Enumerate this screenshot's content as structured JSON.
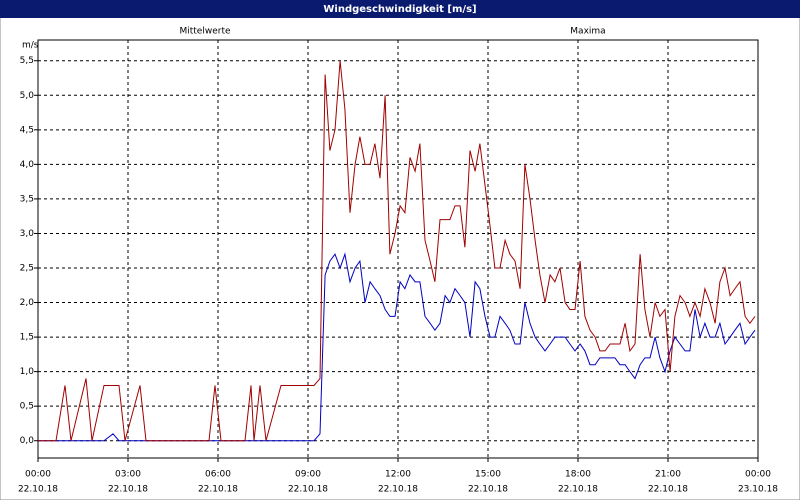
{
  "chart_data": {
    "type": "line",
    "title": "Windgeschwindigkeit [m/s]",
    "y_unit": "m/s",
    "grid": true,
    "xlim": [
      0,
      24
    ],
    "ylim": [
      -0.25,
      5.8
    ],
    "yticks": [
      {
        "value": 0,
        "label": "0,0"
      },
      {
        "value": 0.5,
        "label": "0,5"
      },
      {
        "value": 1,
        "label": "1,0"
      },
      {
        "value": 1.5,
        "label": "1,5"
      },
      {
        "value": 2,
        "label": "2,0"
      },
      {
        "value": 2.5,
        "label": "2,5"
      },
      {
        "value": 3,
        "label": "3,0"
      },
      {
        "value": 3.5,
        "label": "3,5"
      },
      {
        "value": 4,
        "label": "4,0"
      },
      {
        "value": 4.5,
        "label": "4,5"
      },
      {
        "value": 5,
        "label": "5,0"
      },
      {
        "value": 5.5,
        "label": "5,5"
      }
    ],
    "xticks": [
      {
        "value": 0,
        "label": [
          "00:00",
          "22.10.18"
        ]
      },
      {
        "value": 3,
        "label": [
          "03:00",
          "22.10.18"
        ]
      },
      {
        "value": 6,
        "label": [
          "06:00",
          "22.10.18"
        ]
      },
      {
        "value": 9,
        "label": [
          "09:00",
          "22.10.18"
        ]
      },
      {
        "value": 12,
        "label": [
          "12:00",
          "22.10.18"
        ]
      },
      {
        "value": 15,
        "label": [
          "15:00",
          "22.10.18"
        ]
      },
      {
        "value": 18,
        "label": [
          "18:00",
          "22.10.18"
        ]
      },
      {
        "value": 21,
        "label": [
          "21:00",
          "22.10.18"
        ]
      },
      {
        "value": 24,
        "label": [
          "00:00",
          "23.10.18"
        ]
      }
    ],
    "x": [
      0,
      0.6,
      0.9,
      1.1,
      1.6,
      1.8,
      2.2,
      2.5,
      2.7,
      2.9,
      3.4,
      3.6,
      5.7,
      5.9,
      6.1,
      6.9,
      7.1,
      7.2,
      7.4,
      7.6,
      8.1,
      9.2,
      9.4,
      9.57,
      9.73,
      9.9,
      10.07,
      10.23,
      10.4,
      10.57,
      10.73,
      10.9,
      11.07,
      11.23,
      11.4,
      11.57,
      11.73,
      11.9,
      12.07,
      12.23,
      12.4,
      12.57,
      12.73,
      12.9,
      13.07,
      13.23,
      13.4,
      13.57,
      13.73,
      13.9,
      14.07,
      14.23,
      14.4,
      14.57,
      14.73,
      14.9,
      15.07,
      15.23,
      15.4,
      15.57,
      15.73,
      15.9,
      16.07,
      16.23,
      16.4,
      16.57,
      16.73,
      16.9,
      17.07,
      17.23,
      17.4,
      17.57,
      17.73,
      17.9,
      18.07,
      18.23,
      18.4,
      18.57,
      18.73,
      18.9,
      19.07,
      19.23,
      19.4,
      19.57,
      19.73,
      19.9,
      20.07,
      20.23,
      20.4,
      20.57,
      20.73,
      20.9,
      21.07,
      21.23,
      21.4,
      21.57,
      21.73,
      21.9,
      22.07,
      22.23,
      22.4,
      22.57,
      22.73,
      22.9,
      23.07,
      23.23,
      23.4,
      23.57,
      23.73,
      23.9
    ],
    "series": [
      {
        "name": "Mittelwerte",
        "color": "#0000c0",
        "values": [
          0,
          0,
          0,
          0,
          0,
          0,
          0,
          0.1,
          0,
          0,
          0,
          0,
          0,
          0,
          0,
          0,
          0,
          0,
          0,
          0,
          0,
          0,
          0.1,
          2.4,
          2.6,
          2.7,
          2.5,
          2.7,
          2.3,
          2.5,
          2.6,
          2.0,
          2.3,
          2.2,
          2.1,
          1.9,
          1.8,
          1.8,
          2.3,
          2.2,
          2.4,
          2.3,
          2.3,
          1.8,
          1.7,
          1.6,
          1.7,
          2.1,
          2.0,
          2.2,
          2.1,
          2.0,
          1.5,
          2.3,
          2.2,
          1.8,
          1.5,
          1.5,
          1.8,
          1.7,
          1.6,
          1.4,
          1.4,
          2.0,
          1.7,
          1.5,
          1.4,
          1.3,
          1.4,
          1.5,
          1.5,
          1.5,
          1.4,
          1.3,
          1.4,
          1.3,
          1.1,
          1.1,
          1.2,
          1.2,
          1.2,
          1.2,
          1.1,
          1.1,
          1.0,
          0.9,
          1.1,
          1.2,
          1.2,
          1.5,
          1.2,
          1.0,
          1.3,
          1.5,
          1.4,
          1.3,
          1.3,
          1.9,
          1.5,
          1.7,
          1.5,
          1.5,
          1.7,
          1.4,
          1.5,
          1.6,
          1.7,
          1.4,
          1.5,
          1.6
        ]
      },
      {
        "name": "Maxima",
        "color": "#a00000",
        "values": [
          0,
          0,
          0.8,
          0,
          0.9,
          0,
          0.8,
          0.8,
          0.8,
          0,
          0.8,
          0,
          0,
          0.8,
          0,
          0,
          0.8,
          0,
          0.8,
          0,
          0.8,
          0.8,
          0.9,
          5.3,
          4.2,
          4.5,
          5.5,
          4.8,
          3.3,
          4.0,
          4.4,
          4.0,
          4.0,
          4.3,
          3.8,
          5.0,
          2.7,
          3.0,
          3.4,
          3.3,
          4.1,
          3.9,
          4.3,
          2.9,
          2.6,
          2.3,
          3.2,
          3.2,
          3.2,
          3.4,
          3.4,
          2.8,
          4.2,
          3.9,
          4.3,
          3.7,
          3.1,
          2.5,
          2.5,
          2.9,
          2.7,
          2.6,
          2.2,
          4.0,
          3.5,
          2.9,
          2.4,
          2.0,
          2.4,
          2.3,
          2.5,
          2.0,
          1.9,
          1.9,
          2.6,
          1.8,
          1.6,
          1.5,
          1.3,
          1.3,
          1.4,
          1.4,
          1.4,
          1.7,
          1.3,
          1.4,
          2.7,
          1.9,
          1.5,
          2.0,
          1.8,
          1.9,
          1.0,
          1.8,
          2.1,
          2.0,
          1.8,
          2.0,
          1.8,
          2.2,
          2.0,
          1.7,
          2.3,
          2.5,
          2.1,
          2.2,
          2.3,
          1.8,
          1.7,
          1.8
        ]
      }
    ]
  }
}
